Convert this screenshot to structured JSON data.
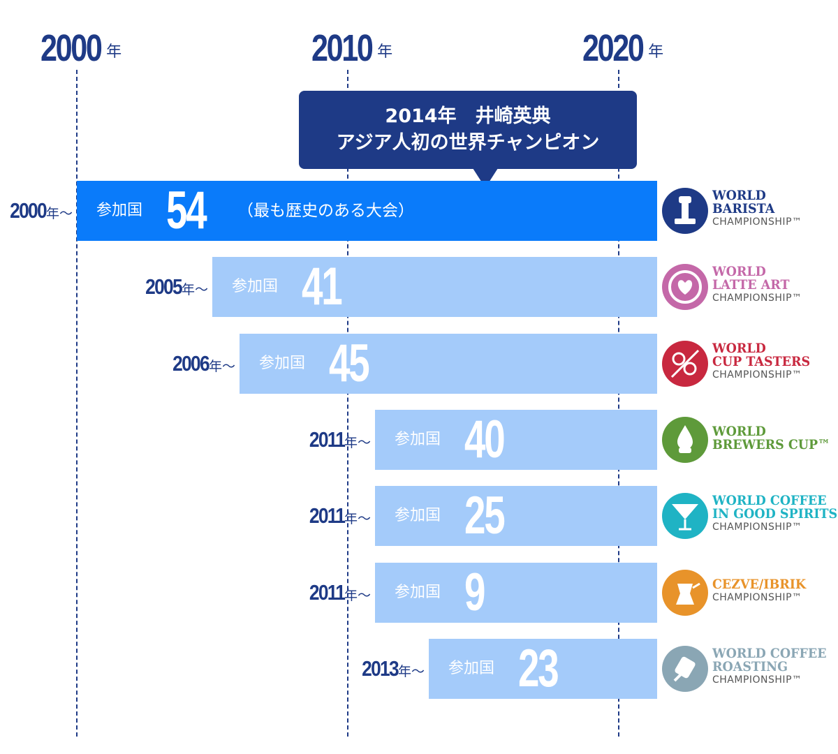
{
  "chart_data": {
    "type": "bar",
    "axis": {
      "unit": "年",
      "ticks": [
        2000,
        2010,
        2020
      ],
      "range": [
        2000,
        2021.5
      ]
    },
    "callout": {
      "line1": "2014年　井崎英典",
      "line2": "アジア人初の世界チャンピオン",
      "year": 2014
    },
    "bar_label": "参加国",
    "start_suffix": "年〜",
    "bars": [
      {
        "start": 2000,
        "value": 54,
        "note": "（最も歴史のある大会）",
        "color": "#0a7bfa",
        "logo": {
          "l1": "WORLD",
          "l2": "BARISTA",
          "l3": "CHAMPIONSHIP™",
          "color": "#1e3a86",
          "icon": "tamper-icon"
        }
      },
      {
        "start": 2005,
        "value": 41,
        "note": "",
        "color": "#a4cbfa",
        "logo": {
          "l1": "WORLD",
          "l2": "LATTE ART",
          "l3": "CHAMPIONSHIP™",
          "color": "#c468a8",
          "icon": "latte-heart-icon"
        }
      },
      {
        "start": 2006,
        "value": 45,
        "note": "",
        "color": "#a4cbfa",
        "logo": {
          "l1": "WORLD",
          "l2": "CUP TASTERS",
          "l3": "CHAMPIONSHIP™",
          "color": "#c8283f",
          "icon": "spoons-icon"
        }
      },
      {
        "start": 2011,
        "value": 40,
        "note": "",
        "color": "#a4cbfa",
        "logo": {
          "l1": "WORLD",
          "l2": "BREWERS CUP™",
          "l3": "",
          "color": "#5e9a3a",
          "icon": "brew-drop-icon"
        }
      },
      {
        "start": 2011,
        "value": 25,
        "note": "",
        "color": "#a4cbfa",
        "logo": {
          "l1": "WORLD COFFEE",
          "l2": "IN GOOD SPIRITS",
          "l3": "CHAMPIONSHIP™",
          "color": "#1fb3c4",
          "icon": "cocktail-glass-icon"
        }
      },
      {
        "start": 2011,
        "value": 9,
        "note": "",
        "color": "#a4cbfa",
        "logo": {
          "l1": "CEZVE/IBRIK",
          "l2": "",
          "l3": "CHAMPIONSHIP™",
          "color": "#e8932a",
          "icon": "cezve-icon"
        }
      },
      {
        "start": 2013,
        "value": 23,
        "note": "",
        "color": "#a4cbfa",
        "logo": {
          "l1": "WORLD COFFEE",
          "l2": "ROASTING",
          "l3": "CHAMPIONSHIP™",
          "color": "#8aa6b4",
          "icon": "roaster-icon"
        }
      }
    ]
  }
}
